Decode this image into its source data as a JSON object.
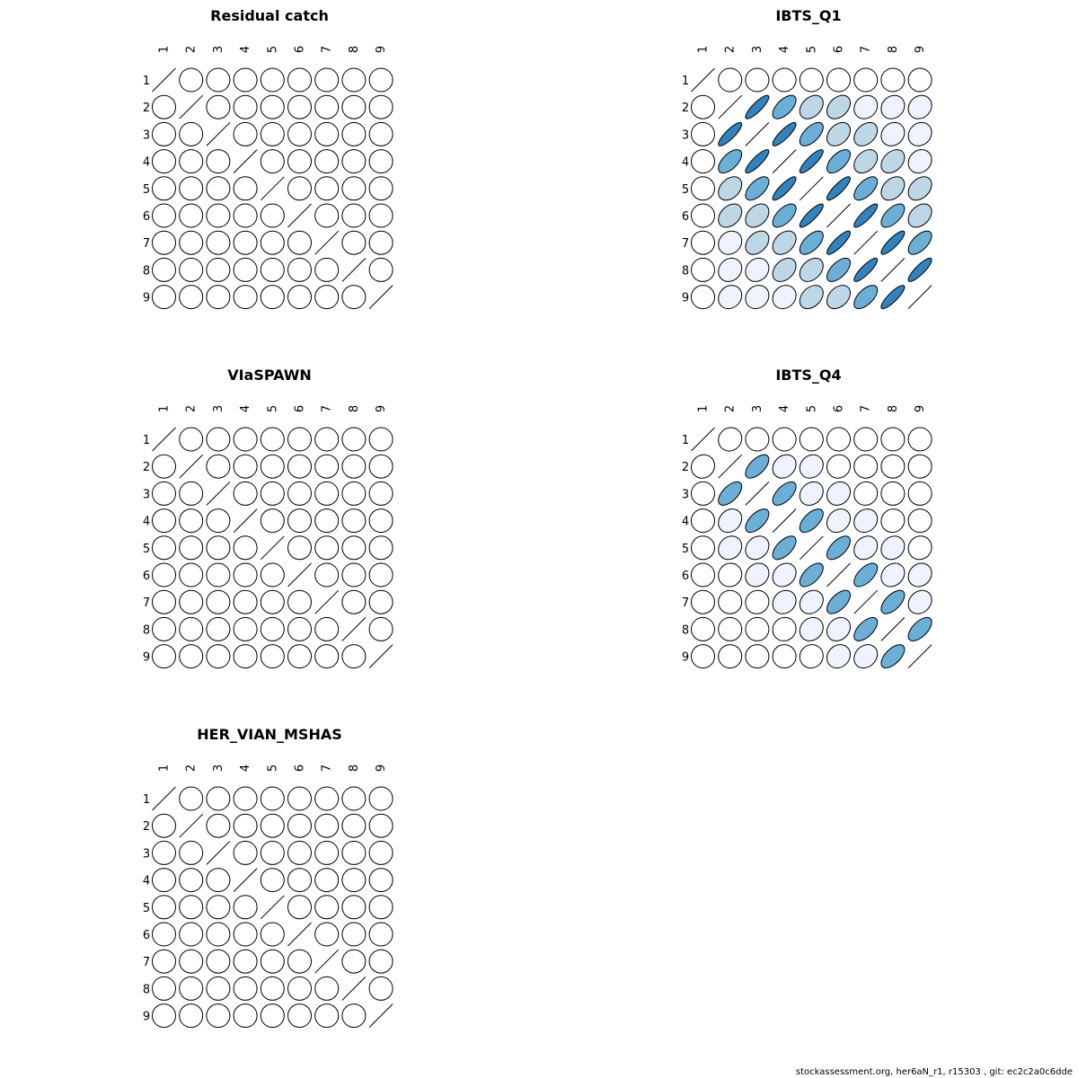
{
  "colors": {
    "background": "#ffffff",
    "stroke": "#000000",
    "palette": [
      "#ffffff",
      "#eff3ff",
      "#bdd7e7",
      "#6baed6",
      "#3182bd"
    ]
  },
  "footer_text": "stockassessment.org, her6aN_r1, r15303 , git: ec2c2a0c6dde",
  "chart_data": [
    {
      "type": "heatmap",
      "title": "Residual catch",
      "labels": [
        "1",
        "2",
        "3",
        "4",
        "5",
        "6",
        "7",
        "8",
        "9"
      ],
      "matrix": [
        [
          1,
          0,
          0,
          0,
          0,
          0,
          0,
          0,
          0
        ],
        [
          0,
          1,
          0,
          0,
          0,
          0,
          0,
          0,
          0
        ],
        [
          0,
          0,
          1,
          0,
          0,
          0,
          0,
          0,
          0
        ],
        [
          0,
          0,
          0,
          1,
          0,
          0,
          0,
          0,
          0
        ],
        [
          0,
          0,
          0,
          0,
          1,
          0,
          0,
          0,
          0
        ],
        [
          0,
          0,
          0,
          0,
          0,
          1,
          0,
          0,
          0
        ],
        [
          0,
          0,
          0,
          0,
          0,
          0,
          1,
          0,
          0
        ],
        [
          0,
          0,
          0,
          0,
          0,
          0,
          0,
          1,
          0
        ],
        [
          0,
          0,
          0,
          0,
          0,
          0,
          0,
          0,
          1
        ]
      ]
    },
    {
      "type": "heatmap",
      "title": "IBTS_Q1",
      "labels": [
        "1",
        "2",
        "3",
        "4",
        "5",
        "6",
        "7",
        "8",
        "9"
      ],
      "matrix": [
        [
          1,
          0,
          0,
          0,
          0,
          0,
          0,
          0,
          0
        ],
        [
          0,
          1,
          0.85,
          0.6,
          0.35,
          0.35,
          0.15,
          0.15,
          0.15
        ],
        [
          0,
          0.85,
          1,
          0.85,
          0.6,
          0.35,
          0.35,
          0.15,
          0.15
        ],
        [
          0,
          0.6,
          0.85,
          1,
          0.85,
          0.6,
          0.35,
          0.35,
          0.15
        ],
        [
          0,
          0.35,
          0.6,
          0.85,
          1,
          0.85,
          0.6,
          0.35,
          0.35
        ],
        [
          0,
          0.35,
          0.35,
          0.6,
          0.85,
          1,
          0.85,
          0.6,
          0.35
        ],
        [
          0,
          0.15,
          0.35,
          0.35,
          0.6,
          0.85,
          1,
          0.85,
          0.6
        ],
        [
          0,
          0.15,
          0.15,
          0.35,
          0.35,
          0.6,
          0.85,
          1,
          0.85
        ],
        [
          0,
          0.15,
          0.15,
          0.15,
          0.35,
          0.35,
          0.6,
          0.85,
          1
        ]
      ]
    },
    {
      "type": "heatmap",
      "title": "VIaSPAWN",
      "labels": [
        "1",
        "2",
        "3",
        "4",
        "5",
        "6",
        "7",
        "8",
        "9"
      ],
      "matrix": [
        [
          1,
          0,
          0,
          0,
          0,
          0,
          0,
          0,
          0
        ],
        [
          0,
          1,
          0,
          0,
          0,
          0,
          0,
          0,
          0
        ],
        [
          0,
          0,
          1,
          0,
          0,
          0,
          0,
          0,
          0
        ],
        [
          0,
          0,
          0,
          1,
          0,
          0,
          0,
          0,
          0
        ],
        [
          0,
          0,
          0,
          0,
          1,
          0,
          0,
          0,
          0
        ],
        [
          0,
          0,
          0,
          0,
          0,
          1,
          0,
          0,
          0
        ],
        [
          0,
          0,
          0,
          0,
          0,
          0,
          1,
          0,
          0
        ],
        [
          0,
          0,
          0,
          0,
          0,
          0,
          0,
          1,
          0
        ],
        [
          0,
          0,
          0,
          0,
          0,
          0,
          0,
          0,
          1
        ]
      ]
    },
    {
      "type": "heatmap",
      "title": "IBTS_Q4",
      "labels": [
        "1",
        "2",
        "3",
        "4",
        "5",
        "6",
        "7",
        "8",
        "9"
      ],
      "matrix": [
        [
          1,
          0.08,
          0,
          0,
          0,
          0,
          0,
          0,
          0
        ],
        [
          0.08,
          1,
          0.6,
          0.2,
          0.15,
          0.05,
          0,
          0,
          0
        ],
        [
          0,
          0.6,
          1,
          0.6,
          0.2,
          0.15,
          0.05,
          0,
          0
        ],
        [
          0,
          0.2,
          0.6,
          1,
          0.6,
          0.2,
          0.15,
          0.05,
          0
        ],
        [
          0,
          0.15,
          0.2,
          0.6,
          1,
          0.6,
          0.2,
          0.15,
          0.05
        ],
        [
          0,
          0.05,
          0.15,
          0.2,
          0.6,
          1,
          0.6,
          0.2,
          0.15
        ],
        [
          0,
          0,
          0.05,
          0.15,
          0.2,
          0.6,
          1,
          0.6,
          0.2
        ],
        [
          0,
          0,
          0,
          0.05,
          0.15,
          0.2,
          0.6,
          1,
          0.6
        ],
        [
          0,
          0,
          0,
          0,
          0.05,
          0.15,
          0.2,
          0.6,
          1
        ]
      ]
    },
    {
      "type": "heatmap",
      "title": "HER_VIAN_MSHAS",
      "labels": [
        "1",
        "2",
        "3",
        "4",
        "5",
        "6",
        "7",
        "8",
        "9"
      ],
      "matrix": [
        [
          1,
          0,
          0,
          0,
          0,
          0,
          0,
          0,
          0
        ],
        [
          0,
          1,
          0,
          0,
          0,
          0,
          0,
          0,
          0
        ],
        [
          0,
          0,
          1,
          0,
          0,
          0,
          0,
          0,
          0
        ],
        [
          0,
          0,
          0,
          1,
          0,
          0,
          0,
          0,
          0
        ],
        [
          0,
          0,
          0,
          0,
          1,
          0,
          0,
          0,
          0
        ],
        [
          0,
          0,
          0,
          0,
          0,
          1,
          0,
          0,
          0
        ],
        [
          0,
          0,
          0,
          0,
          0,
          0,
          1,
          0,
          0
        ],
        [
          0,
          0,
          0,
          0,
          0,
          0,
          0,
          1,
          0
        ],
        [
          0,
          0,
          0,
          0,
          0,
          0,
          0,
          0,
          1
        ]
      ]
    }
  ]
}
